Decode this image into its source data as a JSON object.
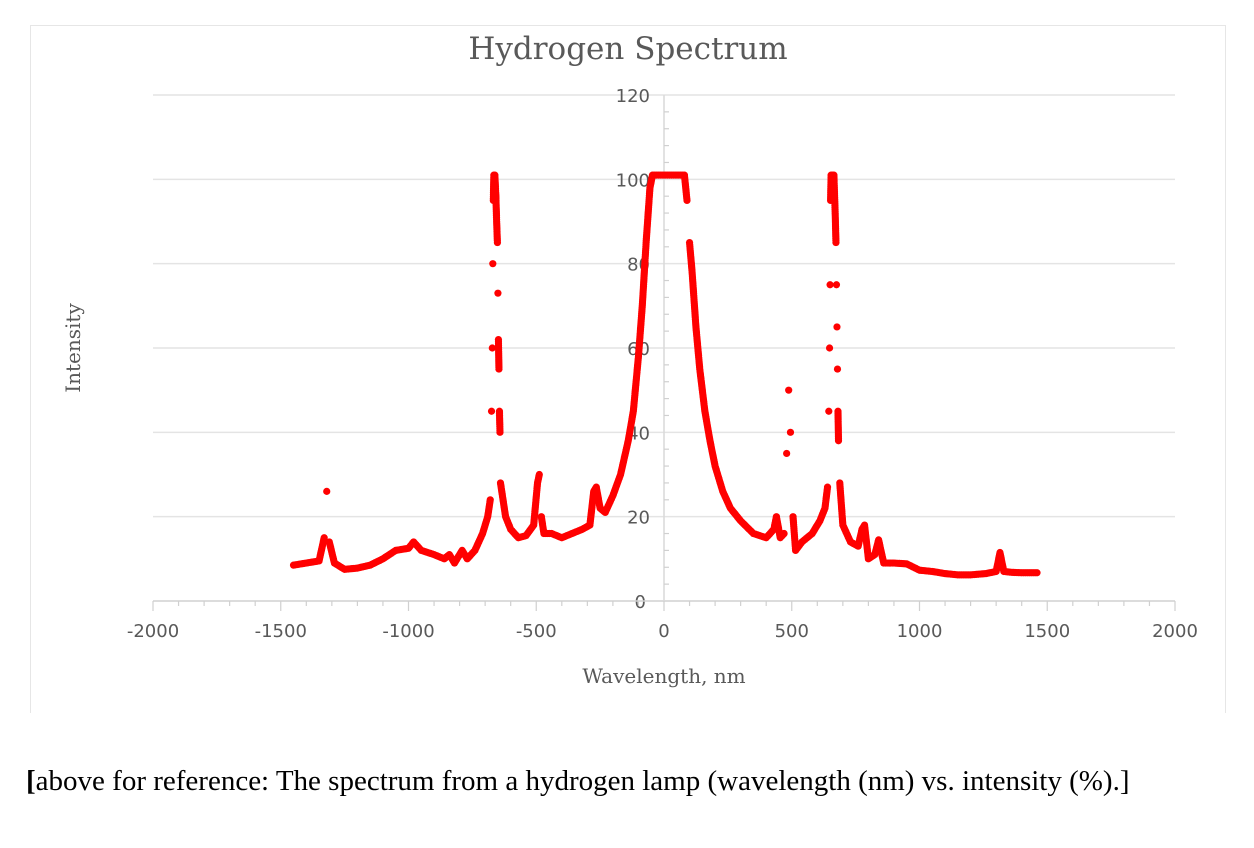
{
  "chart_data": {
    "type": "scatter",
    "title": "Hydrogen Spectrum",
    "xlabel": "Wavelength, nm",
    "ylabel": "Intensity",
    "xlim": [
      -2000,
      2000
    ],
    "ylim": [
      0,
      120
    ],
    "xticks": [
      "-2000",
      "-1500",
      "-1000",
      "-500",
      "0",
      "500",
      "1000",
      "1500",
      "2000"
    ],
    "yticks": [
      "0",
      "20",
      "40",
      "60",
      "80",
      "100",
      "120"
    ],
    "grid": "horizontal",
    "legend": "none",
    "marker_color": "#ff0000",
    "series": [
      {
        "points": [
          [
            -1450,
            8.5
          ],
          [
            -1400,
            9
          ],
          [
            -1350,
            9.5
          ],
          [
            -1330,
            15
          ],
          [
            -1320,
            26
          ],
          [
            -1310,
            14
          ],
          [
            -1290,
            9
          ],
          [
            -1250,
            7.5
          ],
          [
            -1200,
            7.8
          ],
          [
            -1150,
            8.5
          ],
          [
            -1100,
            10
          ],
          [
            -1050,
            12
          ],
          [
            -1000,
            12.5
          ],
          [
            -980,
            14
          ],
          [
            -950,
            12
          ],
          [
            -900,
            11
          ],
          [
            -860,
            10
          ],
          [
            -840,
            11
          ],
          [
            -820,
            9
          ],
          [
            -790,
            12
          ],
          [
            -770,
            10
          ],
          [
            -740,
            12
          ],
          [
            -710,
            16
          ],
          [
            -690,
            20
          ],
          [
            -680,
            24
          ],
          [
            -675,
            45
          ],
          [
            -672,
            60
          ],
          [
            -670,
            80
          ],
          [
            -668,
            95
          ],
          [
            -666,
            101
          ],
          [
            -662,
            101
          ],
          [
            -658,
            96
          ],
          [
            -655,
            90
          ],
          [
            -652,
            85
          ],
          [
            -650,
            73
          ],
          [
            -648,
            62
          ],
          [
            -646,
            55
          ],
          [
            -644,
            45
          ],
          [
            -642,
            40
          ],
          [
            -640,
            28
          ],
          [
            -620,
            20
          ],
          [
            -600,
            17
          ],
          [
            -570,
            15
          ],
          [
            -540,
            15.5
          ],
          [
            -510,
            18
          ],
          [
            -495,
            28
          ],
          [
            -488,
            30
          ],
          [
            -480,
            20
          ],
          [
            -470,
            16
          ],
          [
            -440,
            16
          ],
          [
            -400,
            15
          ],
          [
            -360,
            16
          ],
          [
            -320,
            17
          ],
          [
            -290,
            18
          ],
          [
            -275,
            26
          ],
          [
            -265,
            27
          ],
          [
            -250,
            22
          ],
          [
            -230,
            21
          ],
          [
            -200,
            25
          ],
          [
            -170,
            30
          ],
          [
            -140,
            38
          ],
          [
            -120,
            45
          ],
          [
            -100,
            58
          ],
          [
            -85,
            70
          ],
          [
            -70,
            85
          ],
          [
            -55,
            98
          ],
          [
            -45,
            101
          ],
          [
            0,
            101
          ],
          [
            80,
            101
          ],
          [
            90,
            95
          ],
          [
            100,
            85
          ],
          [
            110,
            78
          ],
          [
            125,
            65
          ],
          [
            140,
            55
          ],
          [
            160,
            45
          ],
          [
            180,
            38
          ],
          [
            200,
            32
          ],
          [
            230,
            26
          ],
          [
            260,
            22
          ],
          [
            300,
            19
          ],
          [
            350,
            16
          ],
          [
            400,
            15
          ],
          [
            430,
            17
          ],
          [
            440,
            20
          ],
          [
            455,
            15
          ],
          [
            470,
            16
          ],
          [
            480,
            35
          ],
          [
            488,
            50
          ],
          [
            495,
            40
          ],
          [
            505,
            20
          ],
          [
            515,
            12
          ],
          [
            540,
            14
          ],
          [
            580,
            16
          ],
          [
            610,
            19
          ],
          [
            630,
            22
          ],
          [
            640,
            27
          ],
          [
            645,
            45
          ],
          [
            648,
            60
          ],
          [
            650,
            75
          ],
          [
            652,
            95
          ],
          [
            654,
            101
          ],
          [
            660,
            101
          ],
          [
            665,
            101
          ],
          [
            670,
            92
          ],
          [
            673,
            85
          ],
          [
            675,
            75
          ],
          [
            677,
            65
          ],
          [
            679,
            55
          ],
          [
            681,
            45
          ],
          [
            683,
            38
          ],
          [
            688,
            28
          ],
          [
            700,
            18
          ],
          [
            730,
            14
          ],
          [
            760,
            13
          ],
          [
            775,
            17
          ],
          [
            785,
            18
          ],
          [
            800,
            10
          ],
          [
            825,
            11
          ],
          [
            840,
            14.5
          ],
          [
            860,
            9
          ],
          [
            900,
            9
          ],
          [
            950,
            8.8
          ],
          [
            1000,
            7.3
          ],
          [
            1050,
            7
          ],
          [
            1100,
            6.5
          ],
          [
            1150,
            6.2
          ],
          [
            1200,
            6.2
          ],
          [
            1260,
            6.5
          ],
          [
            1300,
            7
          ],
          [
            1315,
            11.5
          ],
          [
            1330,
            7
          ],
          [
            1360,
            6.8
          ],
          [
            1400,
            6.7
          ],
          [
            1460,
            6.7
          ]
        ]
      }
    ]
  },
  "caption": {
    "bracket": "[",
    "text": "above for reference: The spectrum from a hydrogen lamp (wavelength (nm) vs. intensity (%).]"
  }
}
